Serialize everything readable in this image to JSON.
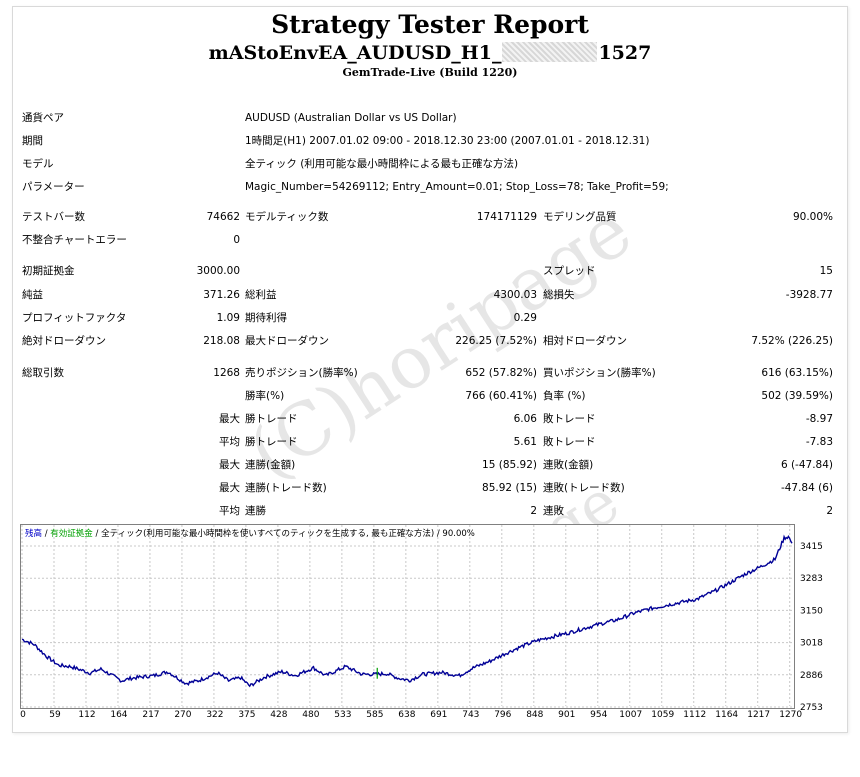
{
  "header": {
    "title": "Strategy Tester Report",
    "ea_prefix": "mAStoEnvEA_AUDUSD_H1_",
    "ea_suffix": "1527",
    "server": "GemTrade-Live (Build 1220)"
  },
  "params": [
    {
      "label": "通貨ペア",
      "value": "AUDUSD (Australian Dollar vs US Dollar)"
    },
    {
      "label": "期間",
      "value": "1時間足(H1) 2007.01.02 09:00 - 2018.12.30 23:00 (2007.01.01 - 2018.12.31)"
    },
    {
      "label": "モデル",
      "value": "全ティック (利用可能な最小時間枠による最も正確な方法)"
    },
    {
      "label": "パラメーター",
      "value": "Magic_Number=54269112; Entry_Amount=0.01; Stop_Loss=78; Take_Profit=59;"
    }
  ],
  "bars": {
    "label": "テストバー数",
    "value": "74662",
    "ticks_label": "モデルティック数",
    "ticks_value": "174171129",
    "quality_label": "モデリング品質",
    "quality_value": "90.00%"
  },
  "mismatch": {
    "label": "不整合チャートエラー",
    "value": "0"
  },
  "deposit": {
    "label": "初期証拠金",
    "value": "3000.00",
    "spread_label": "スプレッド",
    "spread_value": "15"
  },
  "profit": {
    "net_label": "純益",
    "net_value": "371.26",
    "gross_label": "総利益",
    "gross_value": "4300.03",
    "loss_label": "総損失",
    "loss_value": "-3928.77"
  },
  "factors": {
    "pf_label": "プロフィットファクタ",
    "pf_value": "1.09",
    "exp_label": "期待利得",
    "exp_value": "0.29"
  },
  "drawdown": {
    "abs_label": "絶対ドローダウン",
    "abs_value": "218.08",
    "max_label": "最大ドローダウン",
    "max_value": "226.25 (7.52%)",
    "rel_label": "相対ドローダウン",
    "rel_value": "7.52% (226.25)"
  },
  "trades": {
    "total_label": "総取引数",
    "total_value": "1268",
    "short_label": "売りポジション(勝率%)",
    "short_value": "652 (57.82%)",
    "long_label": "買いポジション(勝率%)",
    "long_value": "616 (63.15%)",
    "win_label": "勝率(%)",
    "win_value": "766 (60.41%)",
    "lose_label": "負率 (%)",
    "lose_value": "502 (39.59%)"
  },
  "detail": [
    {
      "prefix": "最大",
      "a_label": "勝トレード",
      "a_value": "6.06",
      "b_label": "敗トレード",
      "b_value": "-8.97"
    },
    {
      "prefix": "平均",
      "a_label": "勝トレード",
      "a_value": "5.61",
      "b_label": "敗トレード",
      "b_value": "-7.83"
    },
    {
      "prefix": "最大",
      "a_label": "連勝(金額)",
      "a_value": "15 (85.92)",
      "b_label": "連敗(金額)",
      "b_value": "6 (-47.84)"
    },
    {
      "prefix": "最大",
      "a_label": "連勝(トレード数)",
      "a_value": "85.92 (15)",
      "b_label": "連敗(トレード数)",
      "b_value": "-47.84 (6)"
    },
    {
      "prefix": "平均",
      "a_label": "連勝",
      "a_value": "2",
      "b_label": "連敗",
      "b_value": "2"
    }
  ],
  "legend": {
    "balance": "残高",
    "sep": " / ",
    "equity": "有効証拠金",
    "rest": " / 全ティック(利用可能な最小時間枠を使いすべてのティックを生成する, 最も正確な方法) / 90.00%",
    "balance_color": "#0000c8",
    "equity_color": "#00a000"
  },
  "watermark": "(C)horipage",
  "chart_data": {
    "type": "line",
    "title": "",
    "xlabel": "",
    "ylabel": "",
    "xlim": [
      0,
      1268
    ],
    "ylim": [
      2753,
      3450
    ],
    "x_ticks": [
      "0",
      "59",
      "112",
      "164",
      "217",
      "270",
      "322",
      "375",
      "428",
      "480",
      "533",
      "585",
      "638",
      "691",
      "743",
      "796",
      "848",
      "901",
      "954",
      "1007",
      "1059",
      "1112",
      "1164",
      "1217",
      "1270"
    ],
    "y_ticks": [
      "3415",
      "3283",
      "3150",
      "3018",
      "2886",
      "2753"
    ],
    "grid": true,
    "series": [
      {
        "name": "残高",
        "color": "#000096",
        "x": [
          0,
          20,
          40,
          60,
          80,
          112,
          130,
          164,
          180,
          217,
          240,
          270,
          290,
          322,
          340,
          360,
          375,
          400,
          428,
          450,
          480,
          500,
          533,
          560,
          585,
          600,
          620,
          638,
          660,
          691,
          720,
          743,
          770,
          796,
          820,
          848,
          870,
          901,
          930,
          954,
          980,
          1007,
          1030,
          1059,
          1080,
          1112,
          1140,
          1164,
          1190,
          1217,
          1240,
          1255,
          1262,
          1268
        ],
        "values": [
          3010,
          2990,
          2945,
          2910,
          2905,
          2880,
          2895,
          2850,
          2860,
          2870,
          2885,
          2840,
          2850,
          2880,
          2850,
          2862,
          2830,
          2865,
          2885,
          2870,
          2900,
          2870,
          2905,
          2875,
          2875,
          2878,
          2860,
          2852,
          2875,
          2882,
          2870,
          2900,
          2925,
          2955,
          2980,
          3005,
          3018,
          3035,
          3055,
          3070,
          3085,
          3110,
          3125,
          3140,
          3150,
          3165,
          3195,
          3225,
          3260,
          3290,
          3318,
          3400,
          3405,
          3380
        ]
      }
    ]
  }
}
